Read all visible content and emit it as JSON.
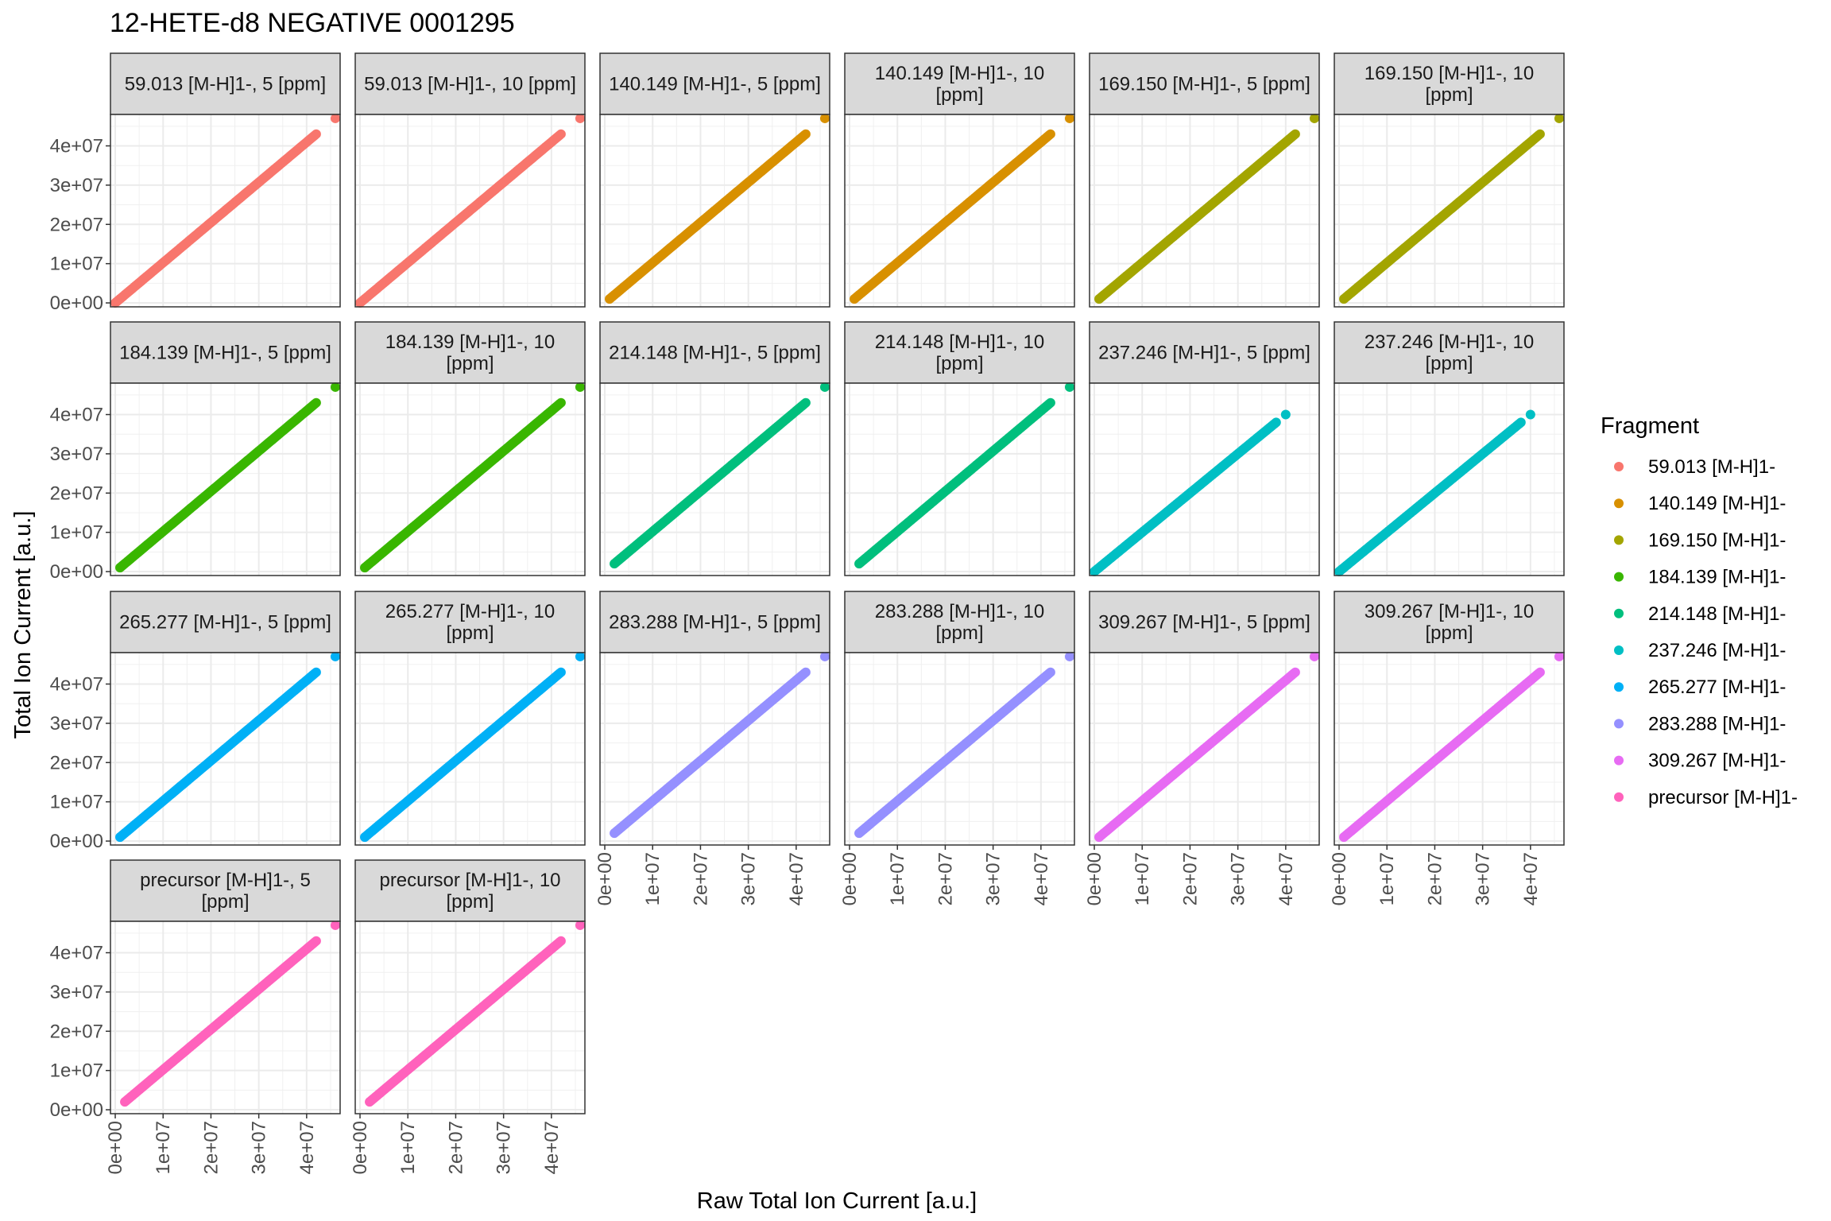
{
  "chart_data": {
    "type": "scatter",
    "title": "12-HETE-d8 NEGATIVE 0001295",
    "xlabel": "Raw Total Ion Current [a.u.]",
    "ylabel": "Total Ion Current [a.u.]",
    "xlim": [
      -1000000,
      47000000
    ],
    "ylim": [
      -1000000,
      48000000
    ],
    "x_ticks": [
      "0e+00",
      "1e+07",
      "2e+07",
      "3e+07",
      "4e+07"
    ],
    "y_ticks": [
      "0e+00",
      "1e+07",
      "2e+07",
      "3e+07",
      "4e+07"
    ],
    "tick_values": [
      0,
      10000000,
      20000000,
      30000000,
      40000000
    ],
    "grid": true,
    "facet_layout": "wrap 6 columns",
    "legend": {
      "title": "Fragment",
      "position": "right",
      "entries": [
        {
          "label": "59.013 [M-H]1-",
          "color": "#F8766D"
        },
        {
          "label": "140.149 [M-H]1-",
          "color": "#D89000"
        },
        {
          "label": "169.150 [M-H]1-",
          "color": "#A3A500"
        },
        {
          "label": "184.139 [M-H]1-",
          "color": "#39B600"
        },
        {
          "label": "214.148 [M-H]1-",
          "color": "#00BF7D"
        },
        {
          "label": "237.246 [M-H]1-",
          "color": "#00BFC4"
        },
        {
          "label": "265.277 [M-H]1-",
          "color": "#00B0F6"
        },
        {
          "label": "283.288 [M-H]1-",
          "color": "#9590FF"
        },
        {
          "label": "309.267 [M-H]1-",
          "color": "#E76BF3"
        },
        {
          "label": "precursor [M-H]1-",
          "color": "#FF62BC"
        }
      ]
    },
    "panels": [
      {
        "strip": [
          "59.013 [M-H]1-, 5 [ppm]"
        ],
        "fragment": 0,
        "x_range": [
          0,
          42000000
        ],
        "y_range": [
          0,
          43000000
        ],
        "outlier": [
          46000000,
          47000000
        ]
      },
      {
        "strip": [
          "59.013 [M-H]1-, 10 [ppm]"
        ],
        "fragment": 0,
        "x_range": [
          0,
          42000000
        ],
        "y_range": [
          0,
          43000000
        ],
        "outlier": [
          46000000,
          47000000
        ]
      },
      {
        "strip": [
          "140.149 [M-H]1-, 5 [ppm]"
        ],
        "fragment": 1,
        "x_range": [
          1000000,
          42000000
        ],
        "y_range": [
          1000000,
          43000000
        ],
        "outlier": [
          46000000,
          47000000
        ]
      },
      {
        "strip": [
          "140.149 [M-H]1-, 10",
          "[ppm]"
        ],
        "fragment": 1,
        "x_range": [
          1000000,
          42000000
        ],
        "y_range": [
          1000000,
          43000000
        ],
        "outlier": [
          46000000,
          47000000
        ]
      },
      {
        "strip": [
          "169.150 [M-H]1-, 5 [ppm]"
        ],
        "fragment": 2,
        "x_range": [
          1000000,
          42000000
        ],
        "y_range": [
          1000000,
          43000000
        ],
        "outlier": [
          46000000,
          47000000
        ]
      },
      {
        "strip": [
          "169.150 [M-H]1-, 10",
          "[ppm]"
        ],
        "fragment": 2,
        "x_range": [
          1000000,
          42000000
        ],
        "y_range": [
          1000000,
          43000000
        ],
        "outlier": [
          46000000,
          47000000
        ]
      },
      {
        "strip": [
          "184.139 [M-H]1-, 5 [ppm]"
        ],
        "fragment": 3,
        "x_range": [
          1000000,
          42000000
        ],
        "y_range": [
          1000000,
          43000000
        ],
        "outlier": [
          46000000,
          47000000
        ]
      },
      {
        "strip": [
          "184.139 [M-H]1-, 10",
          "[ppm]"
        ],
        "fragment": 3,
        "x_range": [
          1000000,
          42000000
        ],
        "y_range": [
          1000000,
          43000000
        ],
        "outlier": [
          46000000,
          47000000
        ]
      },
      {
        "strip": [
          "214.148 [M-H]1-, 5 [ppm]"
        ],
        "fragment": 4,
        "x_range": [
          2000000,
          42000000
        ],
        "y_range": [
          2000000,
          43000000
        ],
        "outlier": [
          46000000,
          47000000
        ]
      },
      {
        "strip": [
          "214.148 [M-H]1-, 10",
          "[ppm]"
        ],
        "fragment": 4,
        "x_range": [
          2000000,
          42000000
        ],
        "y_range": [
          2000000,
          43000000
        ],
        "outlier": [
          46000000,
          47000000
        ]
      },
      {
        "strip": [
          "237.246 [M-H]1-, 5 [ppm]"
        ],
        "fragment": 5,
        "x_range": [
          0,
          38000000
        ],
        "y_range": [
          0,
          38000000
        ],
        "outlier": [
          40000000,
          40000000
        ]
      },
      {
        "strip": [
          "237.246 [M-H]1-, 10",
          "[ppm]"
        ],
        "fragment": 5,
        "x_range": [
          0,
          38000000
        ],
        "y_range": [
          0,
          38000000
        ],
        "outlier": [
          40000000,
          40000000
        ]
      },
      {
        "strip": [
          "265.277 [M-H]1-, 5 [ppm]"
        ],
        "fragment": 6,
        "x_range": [
          1000000,
          42000000
        ],
        "y_range": [
          1000000,
          43000000
        ],
        "outlier": [
          46000000,
          47000000
        ]
      },
      {
        "strip": [
          "265.277 [M-H]1-, 10",
          "[ppm]"
        ],
        "fragment": 6,
        "x_range": [
          1000000,
          42000000
        ],
        "y_range": [
          1000000,
          43000000
        ],
        "outlier": [
          46000000,
          47000000
        ]
      },
      {
        "strip": [
          "283.288 [M-H]1-, 5 [ppm]"
        ],
        "fragment": 7,
        "x_range": [
          2000000,
          42000000
        ],
        "y_range": [
          2000000,
          43000000
        ],
        "outlier": [
          46000000,
          47000000
        ]
      },
      {
        "strip": [
          "283.288 [M-H]1-, 10",
          "[ppm]"
        ],
        "fragment": 7,
        "x_range": [
          2000000,
          42000000
        ],
        "y_range": [
          2000000,
          43000000
        ],
        "outlier": [
          46000000,
          47000000
        ]
      },
      {
        "strip": [
          "309.267 [M-H]1-, 5 [ppm]"
        ],
        "fragment": 8,
        "x_range": [
          1000000,
          42000000
        ],
        "y_range": [
          1000000,
          43000000
        ],
        "outlier": [
          46000000,
          47000000
        ]
      },
      {
        "strip": [
          "309.267 [M-H]1-, 10",
          "[ppm]"
        ],
        "fragment": 8,
        "x_range": [
          1000000,
          42000000
        ],
        "y_range": [
          1000000,
          43000000
        ],
        "outlier": [
          46000000,
          47000000
        ]
      },
      {
        "strip": [
          "precursor [M-H]1-, 5",
          "[ppm]"
        ],
        "fragment": 9,
        "x_range": [
          2000000,
          42000000
        ],
        "y_range": [
          2000000,
          43000000
        ],
        "outlier": [
          46000000,
          47000000
        ]
      },
      {
        "strip": [
          "precursor [M-H]1-, 10",
          "[ppm]"
        ],
        "fragment": 9,
        "x_range": [
          2000000,
          42000000
        ],
        "y_range": [
          2000000,
          43000000
        ],
        "outlier": [
          46000000,
          47000000
        ]
      }
    ]
  }
}
